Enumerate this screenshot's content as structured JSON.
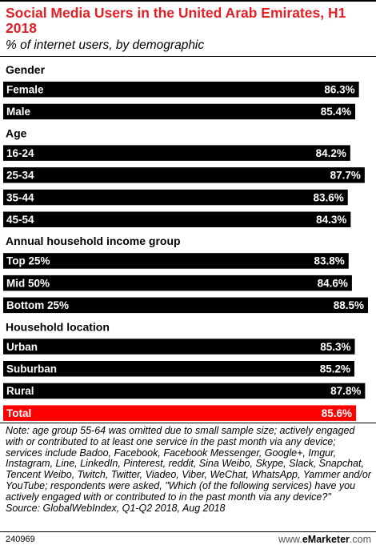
{
  "title": "Social Media Users in the United Arab Emirates, H1 2018",
  "subtitle": "% of internet users, by demographic",
  "note": "Note: age group 55-64 was omitted due to small sample size; actively engaged with or contributed to at least one service in the past month via any device; services include Badoo, Facebook, Facebook Messenger, Google+, Imgur, Instagram, Line, LinkedIn, Pinterest, reddit, Sina Weibo, Skype, Slack, Snapchat, Tencent Weibo, Twitch, Twitter, Viadeo, Viber, WeChat, WhatsApp, Yammer and/or YouTube; respondents were asked, \"Which (of the following services) have you actively engaged with or contributed to in the past month via any device?\"",
  "source": "Source: GlobalWebIndex, Q1-Q2 2018, Aug 2018",
  "chart_id": "240969",
  "brand": {
    "prefix": "www.",
    "name": "eMarketer",
    "suffix": ".com"
  },
  "colors": {
    "bar": "#000000",
    "total_bar": "#ff0000",
    "title": "#e31e24"
  },
  "chart_data": {
    "type": "bar",
    "orientation": "horizontal",
    "unit": "%",
    "xlim": [
      0,
      88.5
    ],
    "groups": [
      {
        "name": "Gender",
        "categories": [
          "Female",
          "Male"
        ],
        "values": [
          86.3,
          85.4
        ]
      },
      {
        "name": "Age",
        "categories": [
          "16-24",
          "25-34",
          "35-44",
          "45-54"
        ],
        "values": [
          84.2,
          87.7,
          83.6,
          84.3
        ]
      },
      {
        "name": "Annual household income group",
        "categories": [
          "Top 25%",
          "Mid 50%",
          "Bottom 25%"
        ],
        "values": [
          83.8,
          84.6,
          88.5
        ]
      },
      {
        "name": "Household location",
        "categories": [
          "Urban",
          "Suburban",
          "Rural"
        ],
        "values": [
          85.3,
          85.2,
          87.8
        ]
      }
    ],
    "total": {
      "label": "Total",
      "value": 85.6
    }
  }
}
